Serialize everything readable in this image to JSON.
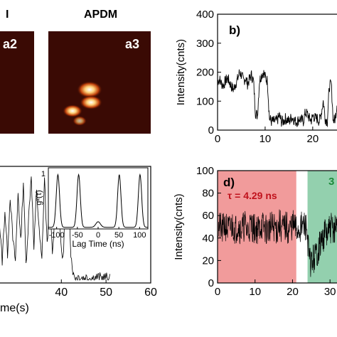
{
  "images": {
    "a2": {
      "label": "a2",
      "color": "#3a0a04"
    },
    "a3": {
      "label": "a3",
      "title": "APDM",
      "color": "#3a0a04"
    },
    "partial_title": "I"
  },
  "chart_data": [
    {
      "id": "b",
      "type": "line",
      "panel_label": "b)",
      "ylabel": "Intensity(cnts)",
      "ylim": [
        0,
        400
      ],
      "yticks": [
        "0",
        "100",
        "200",
        "300",
        "400"
      ],
      "xlim": [
        0,
        26
      ],
      "xticks": [
        "0",
        "10",
        "20"
      ],
      "series": [
        {
          "values": [
            170,
            175,
            160,
            155,
            170,
            180,
            165,
            150,
            140,
            160,
            175,
            200,
            190,
            170,
            180,
            160,
            175,
            190,
            170,
            60,
            50,
            170,
            190,
            200,
            180,
            170,
            40,
            30,
            30,
            30,
            35,
            50,
            30,
            30,
            40,
            35,
            30,
            45,
            40,
            30,
            30,
            40,
            35,
            30,
            60,
            55,
            40,
            35,
            50,
            40,
            40,
            30,
            60,
            100,
            40,
            30,
            150,
            160,
            30,
            40,
            100,
            160,
            160
          ]
        }
      ]
    },
    {
      "id": "c",
      "type": "line",
      "xlabel": "me(s)",
      "xlim": [
        25,
        60
      ],
      "xticks": [
        "40",
        "50",
        "60"
      ],
      "series": [
        {
          "values": [
            150,
            90,
            160,
            60,
            200,
            80,
            240,
            120,
            60,
            250,
            110,
            280,
            50,
            180,
            300,
            90,
            260,
            140,
            60,
            290,
            100,
            240,
            70,
            200,
            310,
            120,
            60,
            230,
            290,
            80,
            20,
            15,
            18,
            15,
            14,
            16,
            15,
            14,
            15,
            16,
            15,
            14,
            15,
            14,
            15
          ]
        }
      ],
      "inset": {
        "type": "line",
        "ylabel": "g²(τ)",
        "xlabel": "Lag Time (ns)",
        "xlim": [
          -120,
          120
        ],
        "xticks": [
          "-100",
          "-50",
          "0",
          "50",
          "100"
        ],
        "ytick": "1",
        "peaks": [
          -97,
          -47,
          51,
          101
        ],
        "center_bump_value": 0.1
      }
    },
    {
      "id": "d",
      "type": "line",
      "panel_label": "d)",
      "ylabel": "Intensity(cnts)",
      "ylim": [
        0,
        100
      ],
      "yticks": [
        "0",
        "20",
        "40",
        "60",
        "80",
        "100"
      ],
      "xlim": [
        0,
        33
      ],
      "xticks": [
        "0",
        "10",
        "20",
        "30"
      ],
      "regions": [
        {
          "x0": 0,
          "x1": 21,
          "color": "#ef8a8a"
        },
        {
          "x0": 24,
          "x1": 33,
          "color": "#80c8a0"
        }
      ],
      "annotations": [
        {
          "text": "τ = 4.29 ns",
          "color": "#c0121c"
        },
        {
          "text": "3",
          "color": "#1e8a3c"
        }
      ],
      "series": [
        {
          "values": [
            48,
            50,
            46,
            52,
            49,
            47,
            51,
            50,
            48,
            53,
            47,
            49,
            52,
            46,
            50,
            51,
            48,
            49,
            47,
            52,
            50,
            48,
            46,
            51,
            49,
            50,
            47,
            53,
            48,
            49,
            51,
            46,
            50,
            52,
            48,
            47,
            49,
            50,
            51,
            48,
            20,
            18,
            22,
            25,
            30,
            35,
            40,
            45,
            42,
            48,
            50,
            46,
            52,
            50,
            48
          ]
        }
      ]
    }
  ]
}
